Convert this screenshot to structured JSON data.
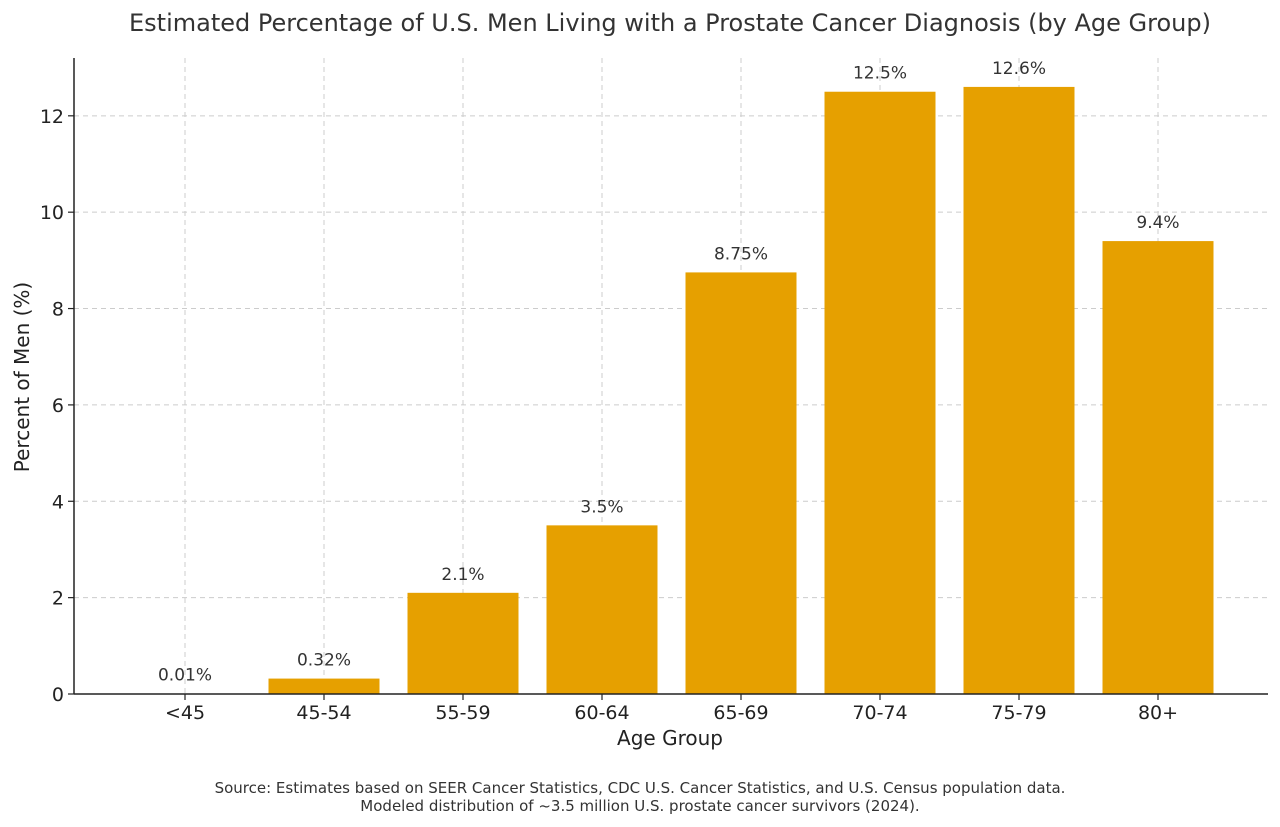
{
  "chart_data": {
    "type": "bar",
    "title": "Estimated Percentage of U.S. Men Living with a Prostate Cancer Diagnosis (by Age Group)",
    "xlabel": "Age Group",
    "ylabel": "Percent of Men (%)",
    "categories": [
      "<45",
      "45-54",
      "55-59",
      "60-64",
      "65-69",
      "70-74",
      "75-79",
      "80+"
    ],
    "values": [
      0.01,
      0.32,
      2.1,
      3.5,
      8.75,
      12.5,
      12.6,
      9.4
    ],
    "value_labels": [
      "0.01%",
      "0.32%",
      "2.1%",
      "3.5%",
      "8.75%",
      "12.5%",
      "12.6%",
      "9.4%"
    ],
    "ylim": [
      0,
      13.2
    ],
    "yticks": [
      0,
      2,
      4,
      6,
      8,
      10,
      12
    ],
    "grid": true,
    "bar_color": "#e6a000",
    "source_lines": [
      "Source: Estimates based on SEER Cancer Statistics, CDC U.S. Cancer Statistics, and U.S. Census population data.",
      "Modeled distribution of ~3.5 million U.S. prostate cancer survivors (2024)."
    ]
  }
}
